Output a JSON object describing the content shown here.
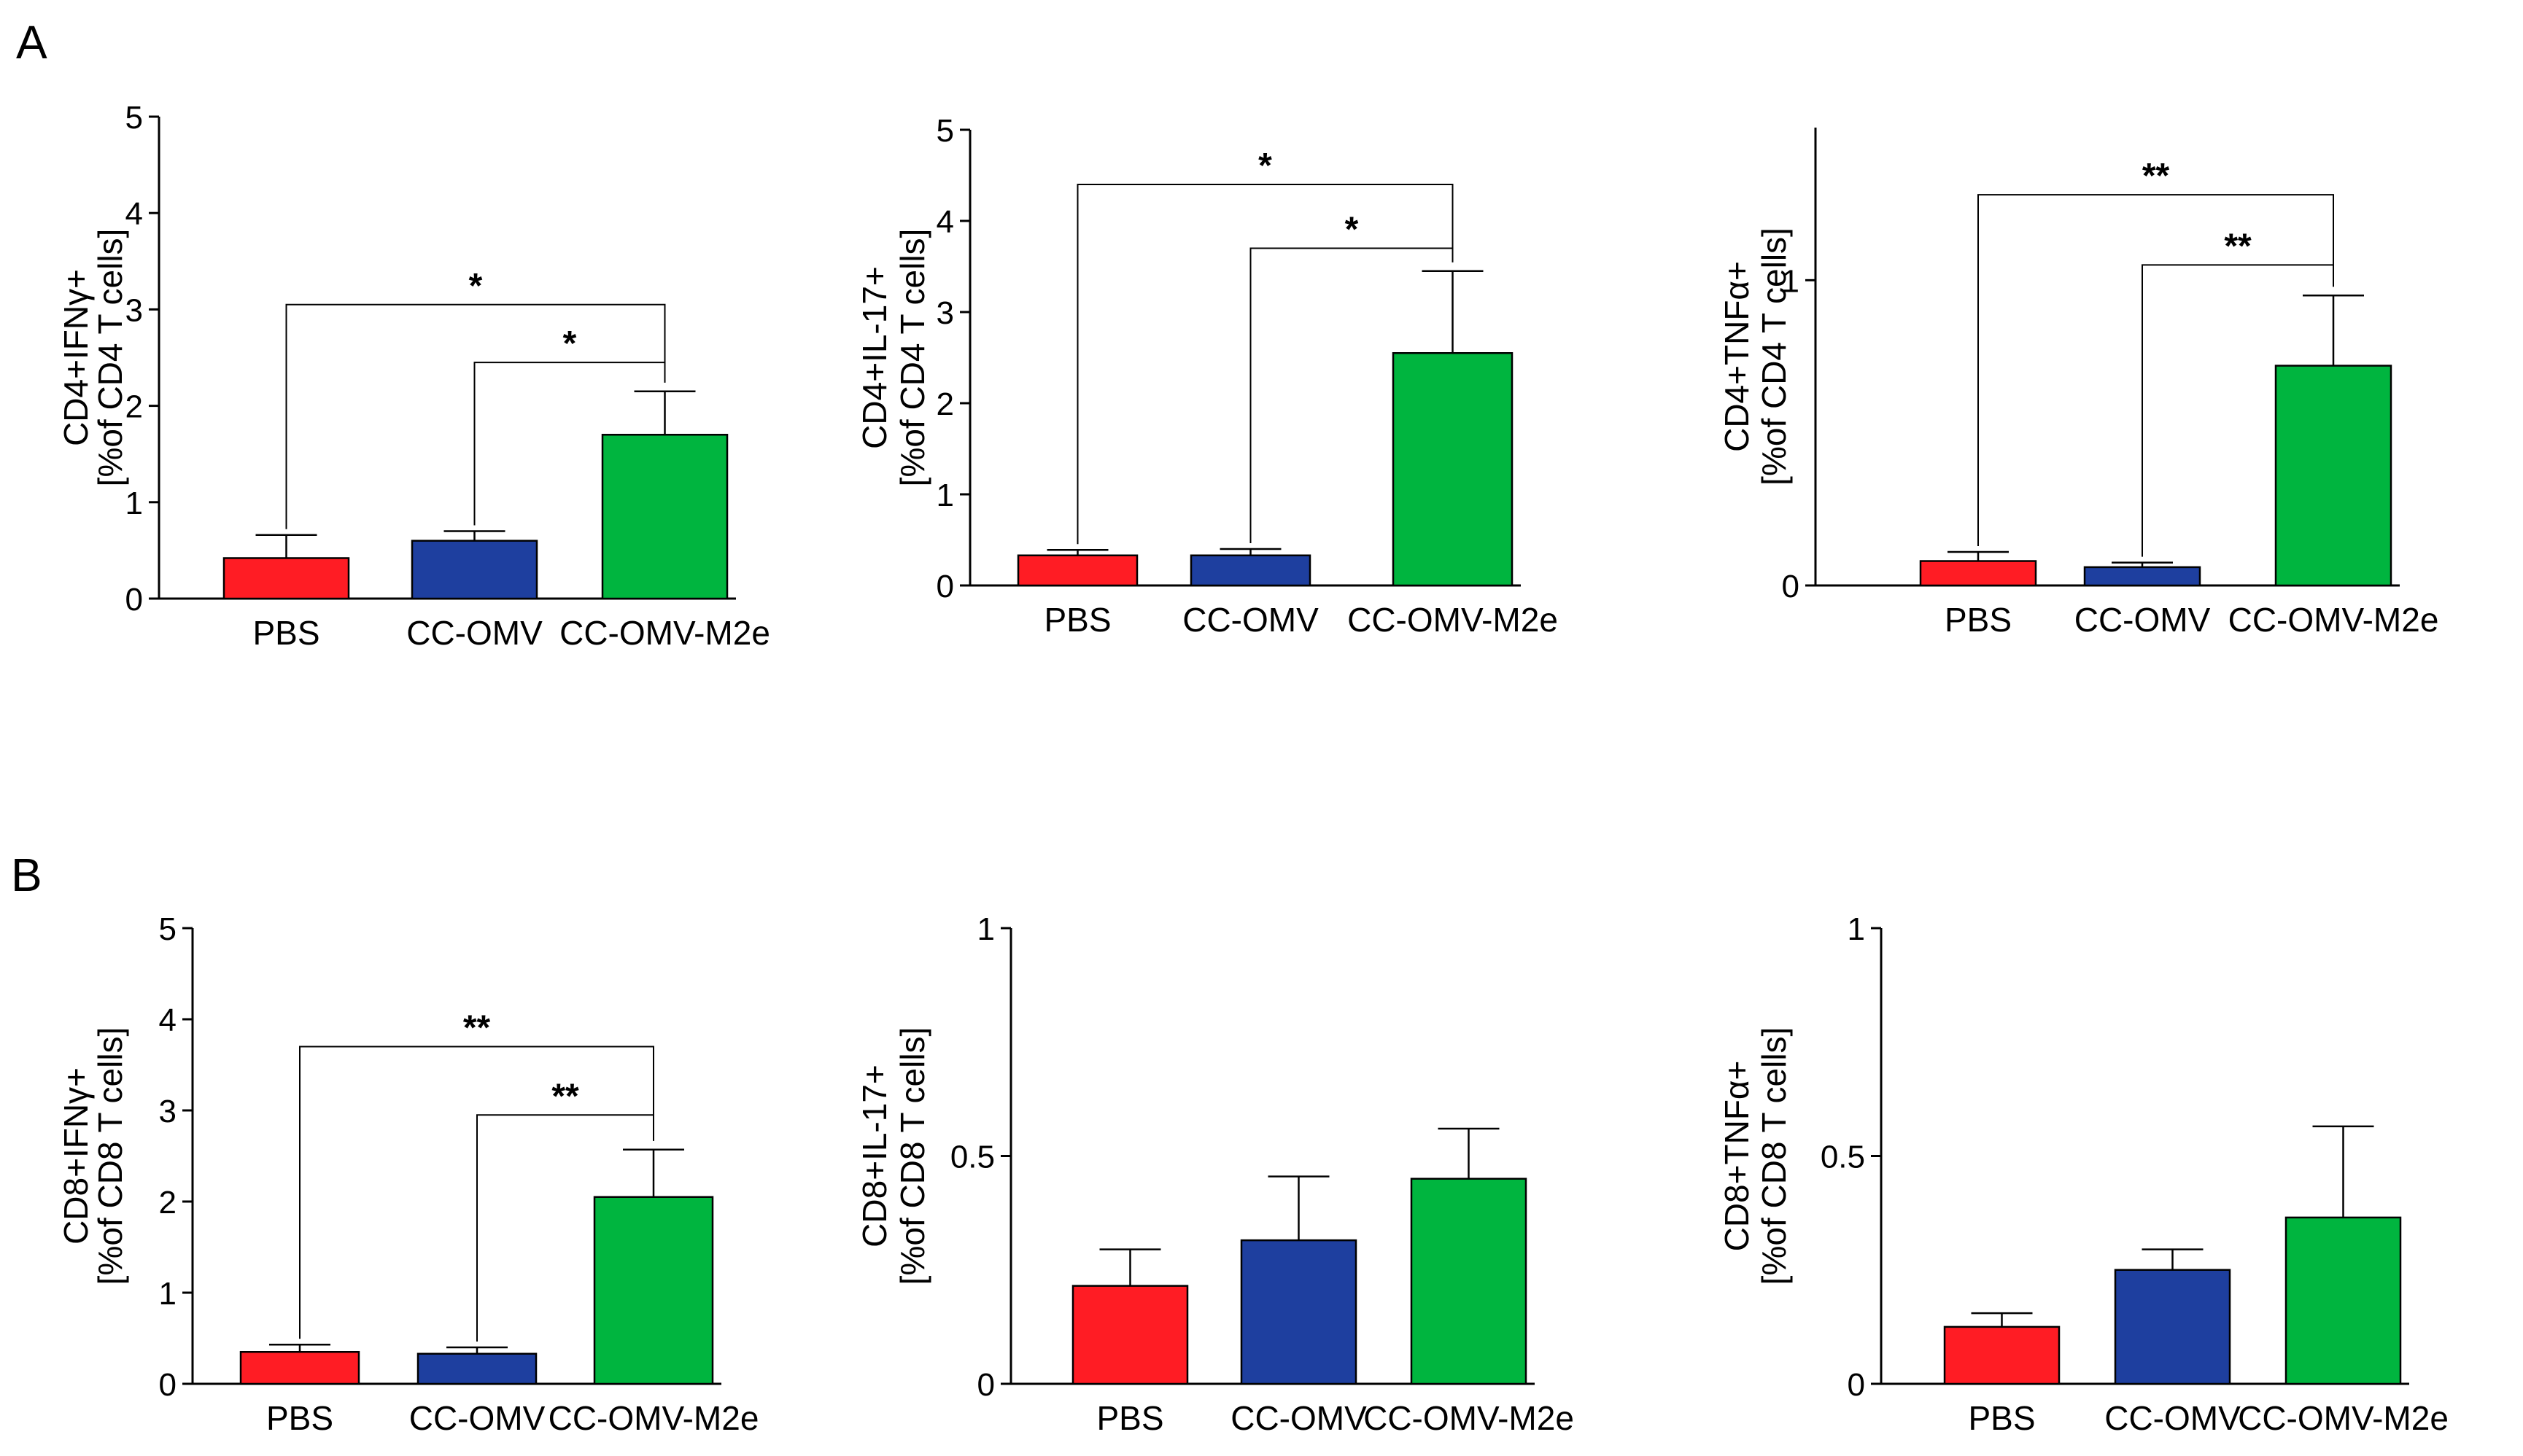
{
  "panels": [
    {
      "letter": "A"
    },
    {
      "letter": "B"
    }
  ],
  "colors": {
    "PBS": "#ff1c24",
    "CC-OMV": "#1e3f9f",
    "CC-OMV-M2e": "#00b53f",
    "axis": "#000000"
  },
  "chart_data": [
    {
      "type": "bar",
      "panel": "A",
      "title": "",
      "ylabel_line1": "CD4+IFNγ+",
      "ylabel_line2": "[%of CD4 T cells]",
      "categories": [
        "PBS",
        "CC-OMV",
        "CC-OMV-M2e"
      ],
      "values": [
        0.42,
        0.6,
        1.7
      ],
      "errors": [
        0.24,
        0.1,
        0.45
      ],
      "ylim": [
        0,
        5
      ],
      "yticks": [
        0,
        1,
        2,
        3,
        4,
        5
      ],
      "ytick_labels": [
        "0",
        "1",
        "2",
        "3",
        "4",
        "5"
      ],
      "significance": [
        {
          "from": 0,
          "to": 2,
          "label": "*",
          "y": 3.05
        },
        {
          "from": 1,
          "to": 2,
          "label": "*",
          "y": 2.45
        }
      ]
    },
    {
      "type": "bar",
      "panel": "A",
      "title": "",
      "ylabel_line1": "CD4+IL-17+",
      "ylabel_line2": "[%of CD4 T cells]",
      "categories": [
        "PBS",
        "CC-OMV",
        "CC-OMV-M2e"
      ],
      "values": [
        0.33,
        0.33,
        2.55
      ],
      "errors": [
        0.06,
        0.07,
        0.9
      ],
      "ylim": [
        0,
        5
      ],
      "yticks": [
        0,
        1,
        2,
        3,
        4,
        5
      ],
      "ytick_labels": [
        "0",
        "1",
        "2",
        "3",
        "4",
        "5"
      ],
      "significance": [
        {
          "from": 0,
          "to": 2,
          "label": "*",
          "y": 4.4
        },
        {
          "from": 1,
          "to": 2,
          "label": "*",
          "y": 3.7
        }
      ]
    },
    {
      "type": "bar",
      "panel": "A",
      "title": "",
      "ylabel_line1": "CD4+TNFα+",
      "ylabel_line2": "[%of CD4 T cells]",
      "categories": [
        "PBS",
        "CC-OMV",
        "CC-OMV-M2e"
      ],
      "values": [
        0.08,
        0.06,
        0.72
      ],
      "errors": [
        0.03,
        0.015,
        0.23
      ],
      "ylim": [
        0,
        1.5
      ],
      "yticks": [
        0,
        1
      ],
      "ytick_labels": [
        "0",
        "1"
      ],
      "significance": [
        {
          "from": 0,
          "to": 2,
          "label": "**",
          "y": 1.28
        },
        {
          "from": 1,
          "to": 2,
          "label": "**",
          "y": 1.05
        }
      ]
    },
    {
      "type": "bar",
      "panel": "B",
      "title": "",
      "ylabel_line1": "CD8+IFNγ+",
      "ylabel_line2": "[%of CD8 T cells]",
      "categories": [
        "PBS",
        "CC-OMV",
        "CC-OMV-M2e"
      ],
      "values": [
        0.35,
        0.33,
        2.05
      ],
      "errors": [
        0.08,
        0.07,
        0.52
      ],
      "ylim": [
        0,
        5
      ],
      "yticks": [
        0,
        1,
        2,
        3,
        4,
        5
      ],
      "ytick_labels": [
        "0",
        "1",
        "2",
        "3",
        "4",
        "5"
      ],
      "significance": [
        {
          "from": 0,
          "to": 2,
          "label": "**",
          "y": 3.7
        },
        {
          "from": 1,
          "to": 2,
          "label": "**",
          "y": 2.95
        }
      ]
    },
    {
      "type": "bar",
      "panel": "B",
      "title": "",
      "ylabel_line1": "CD8+IL-17+",
      "ylabel_line2": "[%of CD8 T cells]",
      "categories": [
        "PBS",
        "CC-OMV",
        "CC-OMV-M2e"
      ],
      "values": [
        0.215,
        0.315,
        0.45
      ],
      "errors": [
        0.08,
        0.14,
        0.11
      ],
      "ylim": [
        0,
        1
      ],
      "yticks": [
        0,
        0.5,
        1
      ],
      "ytick_labels": [
        "0",
        "0.5",
        "1"
      ],
      "significance": []
    },
    {
      "type": "bar",
      "panel": "B",
      "title": "",
      "ylabel_line1": "CD8+TNFα+",
      "ylabel_line2": "[%of CD8 T cells]",
      "categories": [
        "PBS",
        "CC-OMV",
        "CC-OMV-M2e"
      ],
      "values": [
        0.125,
        0.25,
        0.365
      ],
      "errors": [
        0.03,
        0.045,
        0.2
      ],
      "ylim": [
        0,
        1
      ],
      "yticks": [
        0,
        0.5,
        1
      ],
      "ytick_labels": [
        "0",
        "0.5",
        "1"
      ],
      "significance": []
    }
  ]
}
